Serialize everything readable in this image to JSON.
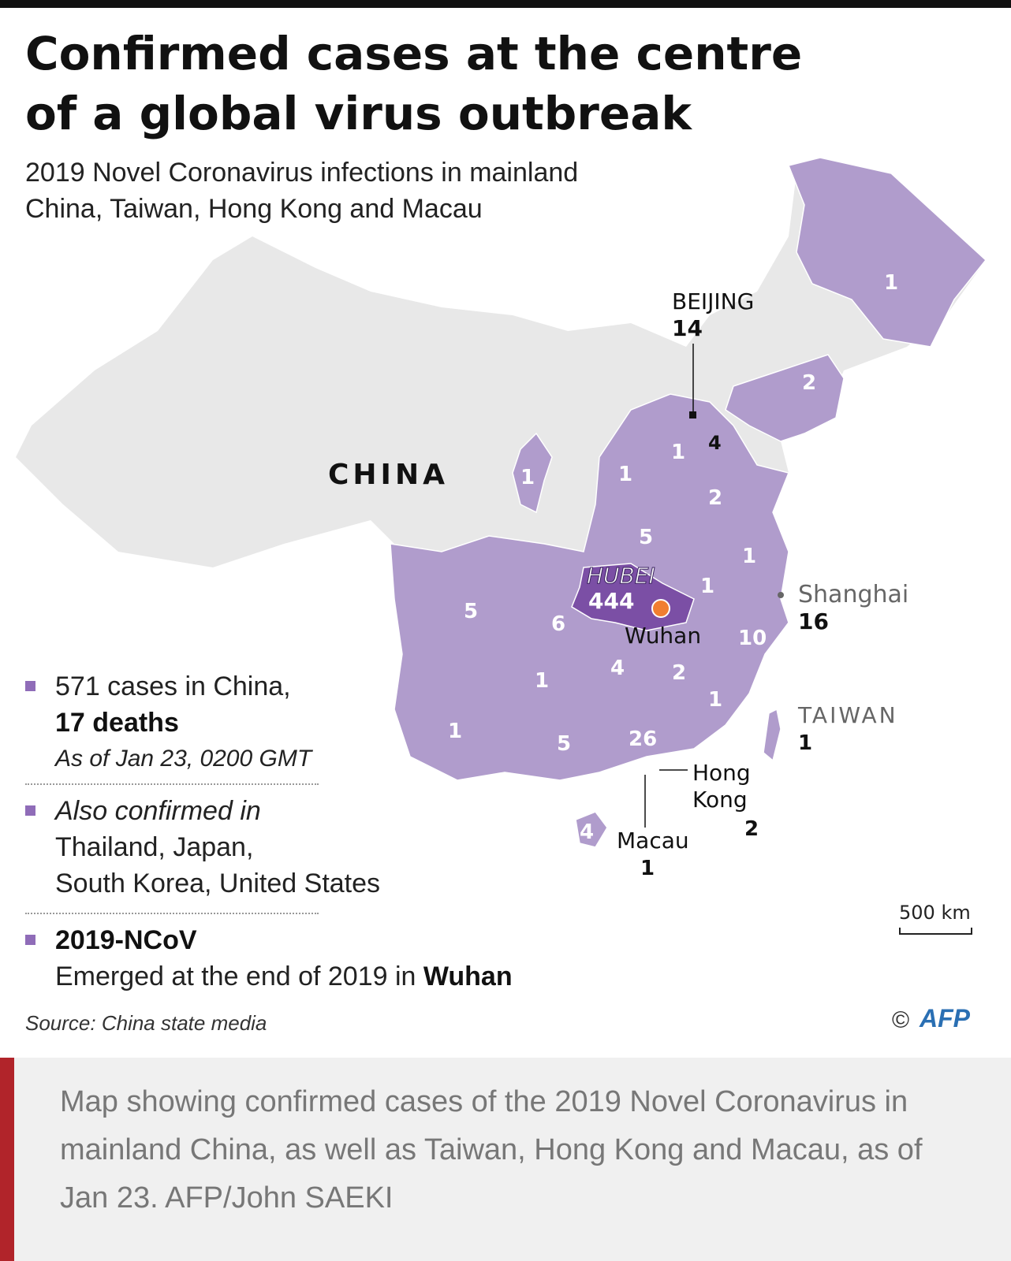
{
  "header": {
    "title_line1": "Confirmed cases at the centre",
    "title_line2": "of a global virus outbreak",
    "subtitle_line1": "2019 Novel Coronavirus infections in mainland",
    "subtitle_line2": "China, Taiwan, Hong Kong and Macau"
  },
  "map": {
    "country_label": "CHINA",
    "colors": {
      "land": "#e8e8e8",
      "affected": "#b09ccc",
      "hubei": "#7b4fa5",
      "wuhan_dot": "#f07e30",
      "text": "#111111",
      "light_text": "#ffffff",
      "grey_text": "#666666"
    },
    "beijing": {
      "name": "BEIJING",
      "cases": "14"
    },
    "shanghai": {
      "name": "Shanghai",
      "cases": "16"
    },
    "hubei": {
      "name": "HUBEI",
      "cases": "444"
    },
    "wuhan": {
      "name": "Wuhan"
    },
    "taiwan": {
      "name": "TAIWAN",
      "cases": "1"
    },
    "hongkong": {
      "name_line1": "Hong",
      "name_line2": "Kong",
      "cases": "2"
    },
    "macau": {
      "name": "Macau",
      "cases": "1"
    },
    "tianjin": {
      "cases": "4"
    },
    "province_counts": {
      "heilongjiang": "1",
      "liaoning": "2",
      "hebei": "1",
      "shanxi": "1",
      "shandong": "2",
      "henan": "5",
      "jiangsu": "1",
      "anhui": "1",
      "ningxia": "1",
      "sichuan": "5",
      "chongqing": "6",
      "zhejiang": "10",
      "hunan": "4",
      "jiangxi": "2",
      "fujian": "1",
      "guizhou": "1",
      "yunnan": "1",
      "guangxi": "5",
      "guangdong": "26",
      "hainan": "4"
    },
    "scale_label": "500 km"
  },
  "legend": {
    "cases_line1": "571 cases in China,",
    "cases_line2": "17 deaths",
    "cases_line3": "As of Jan 23, 0200 GMT",
    "also_line1": "Also confirmed in",
    "also_line2": "Thailand, Japan,",
    "also_line3": "South Korea, United States",
    "ncov_name": "2019-NCoV",
    "ncov_text": "Emerged at the end of 2019 in ",
    "ncov_place": "Wuhan"
  },
  "footer": {
    "source": "Source: China state media",
    "copyright_symbol": "©",
    "agency": "AFP"
  },
  "caption": {
    "text": "Map showing confirmed cases of the 2019 Novel Coronavirus in mainland China, as well as Taiwan, Hong Kong and Macau, as of Jan 23. AFP/John SAEKI"
  }
}
